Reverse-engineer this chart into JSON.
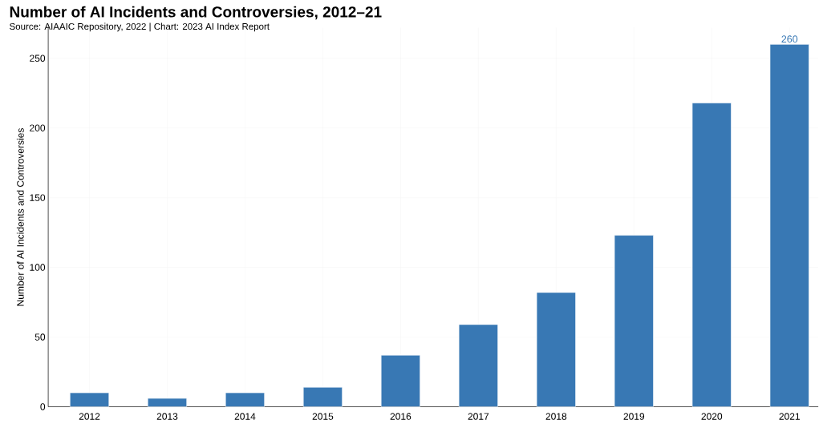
{
  "chart_data": {
    "type": "bar",
    "title": "Number of AI Incidents and Controversies, 2012–21",
    "annotations": [
      "Source: AIAAIC Repository, 2022 | Chart: 2023 AI Index Report"
    ],
    "ylabel": "Number of AI Incidents and Controversies",
    "categories": [
      "2012",
      "2013",
      "2014",
      "2015",
      "2016",
      "2017",
      "2018",
      "2019",
      "2020",
      "2021"
    ],
    "values": [
      10,
      6,
      10,
      14,
      37,
      59,
      82,
      123,
      218,
      260
    ],
    "value_labels": [
      null,
      null,
      null,
      null,
      null,
      null,
      null,
      null,
      null,
      "260"
    ],
    "color": "#3878b4",
    "ylim": [
      0,
      272
    ],
    "yticks": [
      0,
      50,
      100,
      150,
      200,
      250
    ],
    "grid": true
  }
}
